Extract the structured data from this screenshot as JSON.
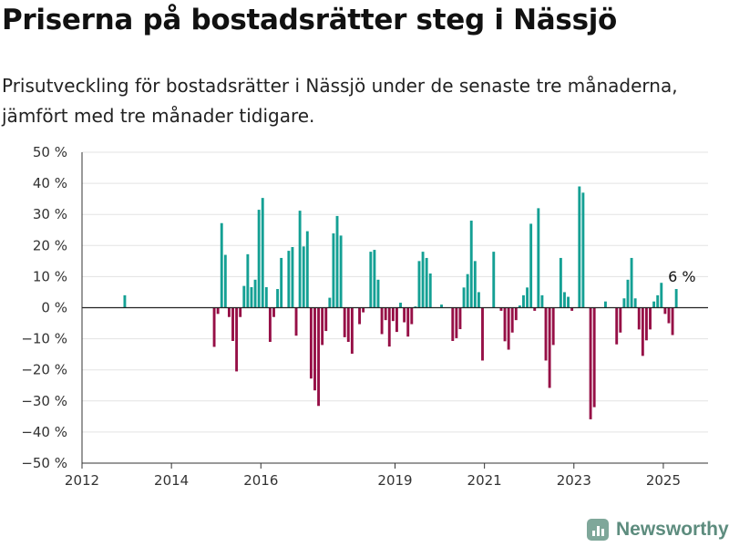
{
  "title": "Priserna på bostadsrätter steg i Nässjö",
  "subtitle": "Prisutveckling för bostadsrätter i Nässjö under de senaste tre månaderna, jämfört med tre månader tidigare.",
  "brand": {
    "name": "Newsworthy",
    "icon": "bar-chart-logo-icon"
  },
  "colors": {
    "positive": "#14a094",
    "negative": "#960f46",
    "grid": "#e3e3e3",
    "zero_line": "#222222",
    "axis": "#333333"
  },
  "chart_data": {
    "type": "bar",
    "title": "Priserna på bostadsrätter steg i Nässjö",
    "xlabel": "",
    "ylabel": "",
    "unit": "%",
    "ylim": [
      -50,
      50
    ],
    "y_ticks": [
      50,
      40,
      30,
      20,
      10,
      0,
      -10,
      -20,
      -30,
      -40,
      -50
    ],
    "y_tick_labels": [
      "50 %",
      "40 %",
      "30 %",
      "20 %",
      "10 %",
      "0 %",
      "−10 %",
      "−20 %",
      "−30 %",
      "−40 %",
      "−50 %"
    ],
    "x_range": [
      "2012-01",
      "2025-12"
    ],
    "x_ticks": [
      "2012-01",
      "2014-01",
      "2016-01",
      "2019-01",
      "2021-01",
      "2023-01",
      "2025-01"
    ],
    "x_tick_labels": [
      "2012",
      "2014",
      "2016",
      "2019",
      "2021",
      "2023",
      "2025"
    ],
    "grid": true,
    "annotation": {
      "text": "6 %",
      "month": "2025-06",
      "value": 6
    },
    "bars": [
      {
        "month": "2012-12",
        "value": 4
      },
      {
        "month": "2014-12",
        "value": -12.6
      },
      {
        "month": "2015-01",
        "value": -2
      },
      {
        "month": "2015-02",
        "value": 27.2
      },
      {
        "month": "2015-03",
        "value": 17
      },
      {
        "month": "2015-04",
        "value": -3
      },
      {
        "month": "2015-05",
        "value": -10.7
      },
      {
        "month": "2015-06",
        "value": -20.5
      },
      {
        "month": "2015-07",
        "value": -3
      },
      {
        "month": "2015-08",
        "value": 7
      },
      {
        "month": "2015-09",
        "value": 17.2
      },
      {
        "month": "2015-10",
        "value": 6.6
      },
      {
        "month": "2015-11",
        "value": 9
      },
      {
        "month": "2015-12",
        "value": 31.5
      },
      {
        "month": "2016-01",
        "value": 35.3
      },
      {
        "month": "2016-02",
        "value": 6.6
      },
      {
        "month": "2016-03",
        "value": -11
      },
      {
        "month": "2016-04",
        "value": -3
      },
      {
        "month": "2016-05",
        "value": 6
      },
      {
        "month": "2016-06",
        "value": 16
      },
      {
        "month": "2016-08",
        "value": 18.3
      },
      {
        "month": "2016-09",
        "value": 19.5
      },
      {
        "month": "2016-10",
        "value": -9
      },
      {
        "month": "2016-11",
        "value": 31.2
      },
      {
        "month": "2016-12",
        "value": 19.7
      },
      {
        "month": "2017-01",
        "value": 24.6
      },
      {
        "month": "2017-02",
        "value": -22.8
      },
      {
        "month": "2017-03",
        "value": -26.6
      },
      {
        "month": "2017-04",
        "value": -31.6
      },
      {
        "month": "2017-05",
        "value": -12
      },
      {
        "month": "2017-06",
        "value": -7.5
      },
      {
        "month": "2017-07",
        "value": 3.2
      },
      {
        "month": "2017-08",
        "value": 23.9
      },
      {
        "month": "2017-09",
        "value": 29.5
      },
      {
        "month": "2017-10",
        "value": 23.2
      },
      {
        "month": "2017-11",
        "value": -9.5
      },
      {
        "month": "2017-12",
        "value": -11
      },
      {
        "month": "2018-01",
        "value": -14.8
      },
      {
        "month": "2018-03",
        "value": -5.3
      },
      {
        "month": "2018-04",
        "value": -1.5
      },
      {
        "month": "2018-06",
        "value": 18
      },
      {
        "month": "2018-07",
        "value": 18.6
      },
      {
        "month": "2018-08",
        "value": 9
      },
      {
        "month": "2018-09",
        "value": -8.5
      },
      {
        "month": "2018-10",
        "value": -4
      },
      {
        "month": "2018-11",
        "value": -12.5
      },
      {
        "month": "2018-12",
        "value": -4.3
      },
      {
        "month": "2019-01",
        "value": -7.8
      },
      {
        "month": "2019-02",
        "value": 1.6
      },
      {
        "month": "2019-03",
        "value": -4.7
      },
      {
        "month": "2019-04",
        "value": -9.3
      },
      {
        "month": "2019-05",
        "value": -5.3
      },
      {
        "month": "2019-06",
        "value": 0.4
      },
      {
        "month": "2019-07",
        "value": 15
      },
      {
        "month": "2019-08",
        "value": 18
      },
      {
        "month": "2019-09",
        "value": 16
      },
      {
        "month": "2019-10",
        "value": 11
      },
      {
        "month": "2020-01",
        "value": 1
      },
      {
        "month": "2020-04",
        "value": -10.7
      },
      {
        "month": "2020-05",
        "value": -9.8
      },
      {
        "month": "2020-06",
        "value": -6.9
      },
      {
        "month": "2020-07",
        "value": 6.5
      },
      {
        "month": "2020-08",
        "value": 10.8
      },
      {
        "month": "2020-09",
        "value": 28
      },
      {
        "month": "2020-10",
        "value": 15
      },
      {
        "month": "2020-11",
        "value": 5
      },
      {
        "month": "2020-12",
        "value": -17
      },
      {
        "month": "2021-03",
        "value": 18
      },
      {
        "month": "2021-05",
        "value": -1
      },
      {
        "month": "2021-06",
        "value": -10.8
      },
      {
        "month": "2021-07",
        "value": -13.5
      },
      {
        "month": "2021-08",
        "value": -8
      },
      {
        "month": "2021-09",
        "value": -4
      },
      {
        "month": "2021-10",
        "value": 0.7
      },
      {
        "month": "2021-11",
        "value": 4
      },
      {
        "month": "2021-12",
        "value": 6.5
      },
      {
        "month": "2022-01",
        "value": 27
      },
      {
        "month": "2022-02",
        "value": -1
      },
      {
        "month": "2022-03",
        "value": 32
      },
      {
        "month": "2022-04",
        "value": 4
      },
      {
        "month": "2022-05",
        "value": -17
      },
      {
        "month": "2022-06",
        "value": -25.8
      },
      {
        "month": "2022-07",
        "value": -12
      },
      {
        "month": "2022-09",
        "value": 16
      },
      {
        "month": "2022-10",
        "value": 5
      },
      {
        "month": "2022-11",
        "value": 3.5
      },
      {
        "month": "2022-12",
        "value": -1
      },
      {
        "month": "2023-02",
        "value": 39
      },
      {
        "month": "2023-03",
        "value": 37
      },
      {
        "month": "2023-05",
        "value": -35.9
      },
      {
        "month": "2023-06",
        "value": -32
      },
      {
        "month": "2023-09",
        "value": 2
      },
      {
        "month": "2023-12",
        "value": -11.8
      },
      {
        "month": "2024-01",
        "value": -8
      },
      {
        "month": "2024-02",
        "value": 3
      },
      {
        "month": "2024-03",
        "value": 9
      },
      {
        "month": "2024-04",
        "value": 16
      },
      {
        "month": "2024-05",
        "value": 3
      },
      {
        "month": "2024-06",
        "value": -7
      },
      {
        "month": "2024-07",
        "value": -15.5
      },
      {
        "month": "2024-08",
        "value": -10.5
      },
      {
        "month": "2024-09",
        "value": -7
      },
      {
        "month": "2024-10",
        "value": 2
      },
      {
        "month": "2024-11",
        "value": 4
      },
      {
        "month": "2024-12",
        "value": 8
      },
      {
        "month": "2025-01",
        "value": -2
      },
      {
        "month": "2025-02",
        "value": -5
      },
      {
        "month": "2025-03",
        "value": -8.8
      },
      {
        "month": "2025-04",
        "value": 6
      }
    ]
  }
}
